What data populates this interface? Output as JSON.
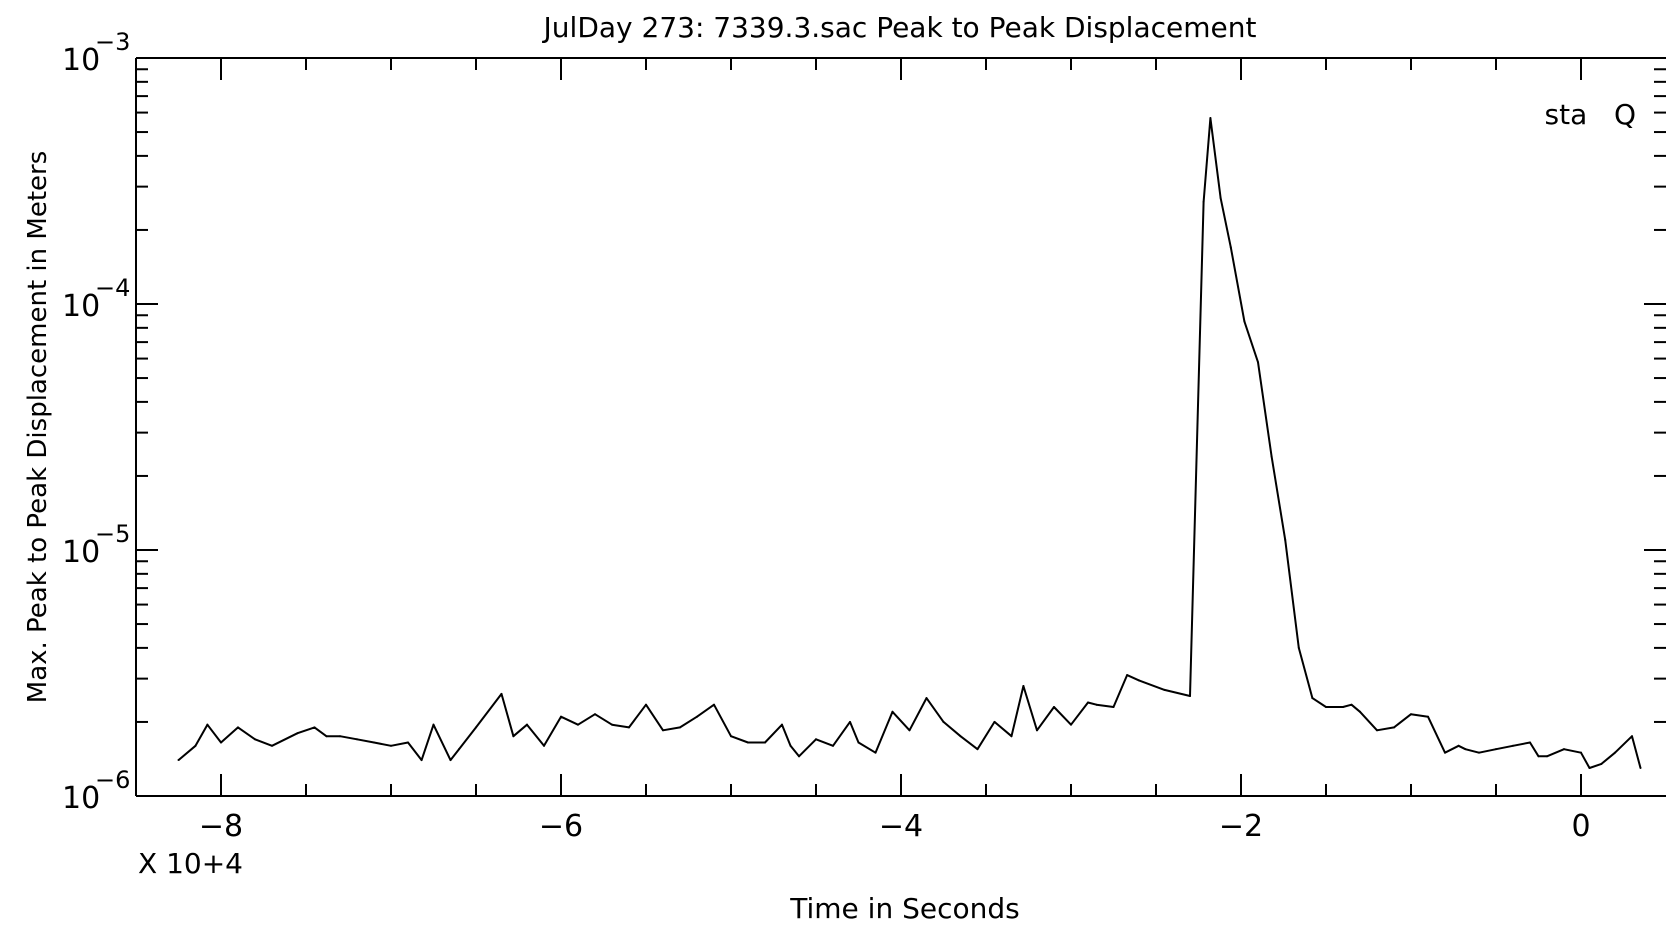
{
  "chart_data": {
    "type": "line",
    "title": "JulDay 273: 7339.3.sac Peak to Peak Displacement",
    "xlabel": "Time in Seconds",
    "ylabel": "Max. Peak to Peak Displacement in Meters",
    "x_multiplier_label": "X 10+4",
    "legend": "sta   Q",
    "legend_position": "top-right",
    "grid": false,
    "yscale": "log",
    "xlim": [
      -8.5,
      0.5
    ],
    "ylim": [
      1e-06,
      0.001
    ],
    "xticks": [
      -8,
      -6,
      -4,
      -2,
      0
    ],
    "xtick_labels": [
      "−8",
      "−6",
      "−4",
      "−2",
      "0"
    ],
    "yticks": [
      {
        "value": 1e-06,
        "base": "10",
        "exp": "−6"
      },
      {
        "value": 1e-05,
        "base": "10",
        "exp": "−5"
      },
      {
        "value": 0.0001,
        "base": "10",
        "exp": "−4"
      },
      {
        "value": 0.001,
        "base": "10",
        "exp": "−3"
      }
    ],
    "series": [
      {
        "color": "#000000",
        "x": [
          -8.25,
          -8.15,
          -8.08,
          -8.0,
          -7.9,
          -7.8,
          -7.7,
          -7.55,
          -7.45,
          -7.38,
          -7.3,
          -7.2,
          -7.1,
          -7.0,
          -6.9,
          -6.82,
          -6.75,
          -6.65,
          -6.6,
          -6.5,
          -6.35,
          -6.28,
          -6.2,
          -6.1,
          -6.0,
          -5.9,
          -5.8,
          -5.7,
          -5.6,
          -5.5,
          -5.4,
          -5.3,
          -5.2,
          -5.1,
          -5.0,
          -4.9,
          -4.8,
          -4.7,
          -4.65,
          -4.6,
          -4.5,
          -4.4,
          -4.3,
          -4.25,
          -4.15,
          -4.05,
          -3.95,
          -3.85,
          -3.75,
          -3.65,
          -3.55,
          -3.45,
          -3.35,
          -3.28,
          -3.2,
          -3.1,
          -3.0,
          -2.9,
          -2.85,
          -2.75,
          -2.67,
          -2.6,
          -2.45,
          -2.3,
          -2.22,
          -2.18,
          -2.12,
          -2.06,
          -1.98,
          -1.9,
          -1.82,
          -1.74,
          -1.66,
          -1.58,
          -1.5,
          -1.4,
          -1.35,
          -1.3,
          -1.2,
          -1.1,
          -1.0,
          -0.9,
          -0.8,
          -0.72,
          -0.68,
          -0.6,
          -0.5,
          -0.4,
          -0.3,
          -0.25,
          -0.2,
          -0.1,
          0.0,
          0.05,
          0.12,
          0.2,
          0.3,
          0.35
        ],
        "y": [
          1.4e-06,
          1.6e-06,
          1.95e-06,
          1.65e-06,
          1.9e-06,
          1.7e-06,
          1.6e-06,
          1.8e-06,
          1.9e-06,
          1.75e-06,
          1.75e-06,
          1.7e-06,
          1.65e-06,
          1.6e-06,
          1.65e-06,
          1.4e-06,
          1.95e-06,
          1.4e-06,
          1.55e-06,
          1.9e-06,
          2.6e-06,
          1.75e-06,
          1.95e-06,
          1.6e-06,
          2.1e-06,
          1.95e-06,
          2.15e-06,
          1.95e-06,
          1.9e-06,
          2.35e-06,
          1.85e-06,
          1.9e-06,
          2.1e-06,
          2.35e-06,
          1.75e-06,
          1.65e-06,
          1.65e-06,
          1.95e-06,
          1.6e-06,
          1.45e-06,
          1.7e-06,
          1.6e-06,
          2e-06,
          1.65e-06,
          1.5e-06,
          2.2e-06,
          1.85e-06,
          2.5e-06,
          2e-06,
          1.75e-06,
          1.55e-06,
          2e-06,
          1.75e-06,
          2.8e-06,
          1.85e-06,
          2.3e-06,
          1.95e-06,
          2.4e-06,
          2.35e-06,
          2.3e-06,
          3.1e-06,
          2.95e-06,
          2.7e-06,
          2.55e-06,
          0.00026,
          0.00057,
          0.00027,
          0.00017,
          8.5e-05,
          5.8e-05,
          2.4e-05,
          1.1e-05,
          4e-06,
          2.5e-06,
          2.3e-06,
          2.3e-06,
          2.35e-06,
          2.2e-06,
          1.85e-06,
          1.9e-06,
          2.15e-06,
          2.1e-06,
          1.5e-06,
          1.6e-06,
          1.55e-06,
          1.5e-06,
          1.55e-06,
          1.6e-06,
          1.65e-06,
          1.45e-06,
          1.45e-06,
          1.55e-06,
          1.5e-06,
          1.3e-06,
          1.35e-06,
          1.5e-06,
          1.75e-06,
          1.3e-06
        ]
      }
    ]
  }
}
